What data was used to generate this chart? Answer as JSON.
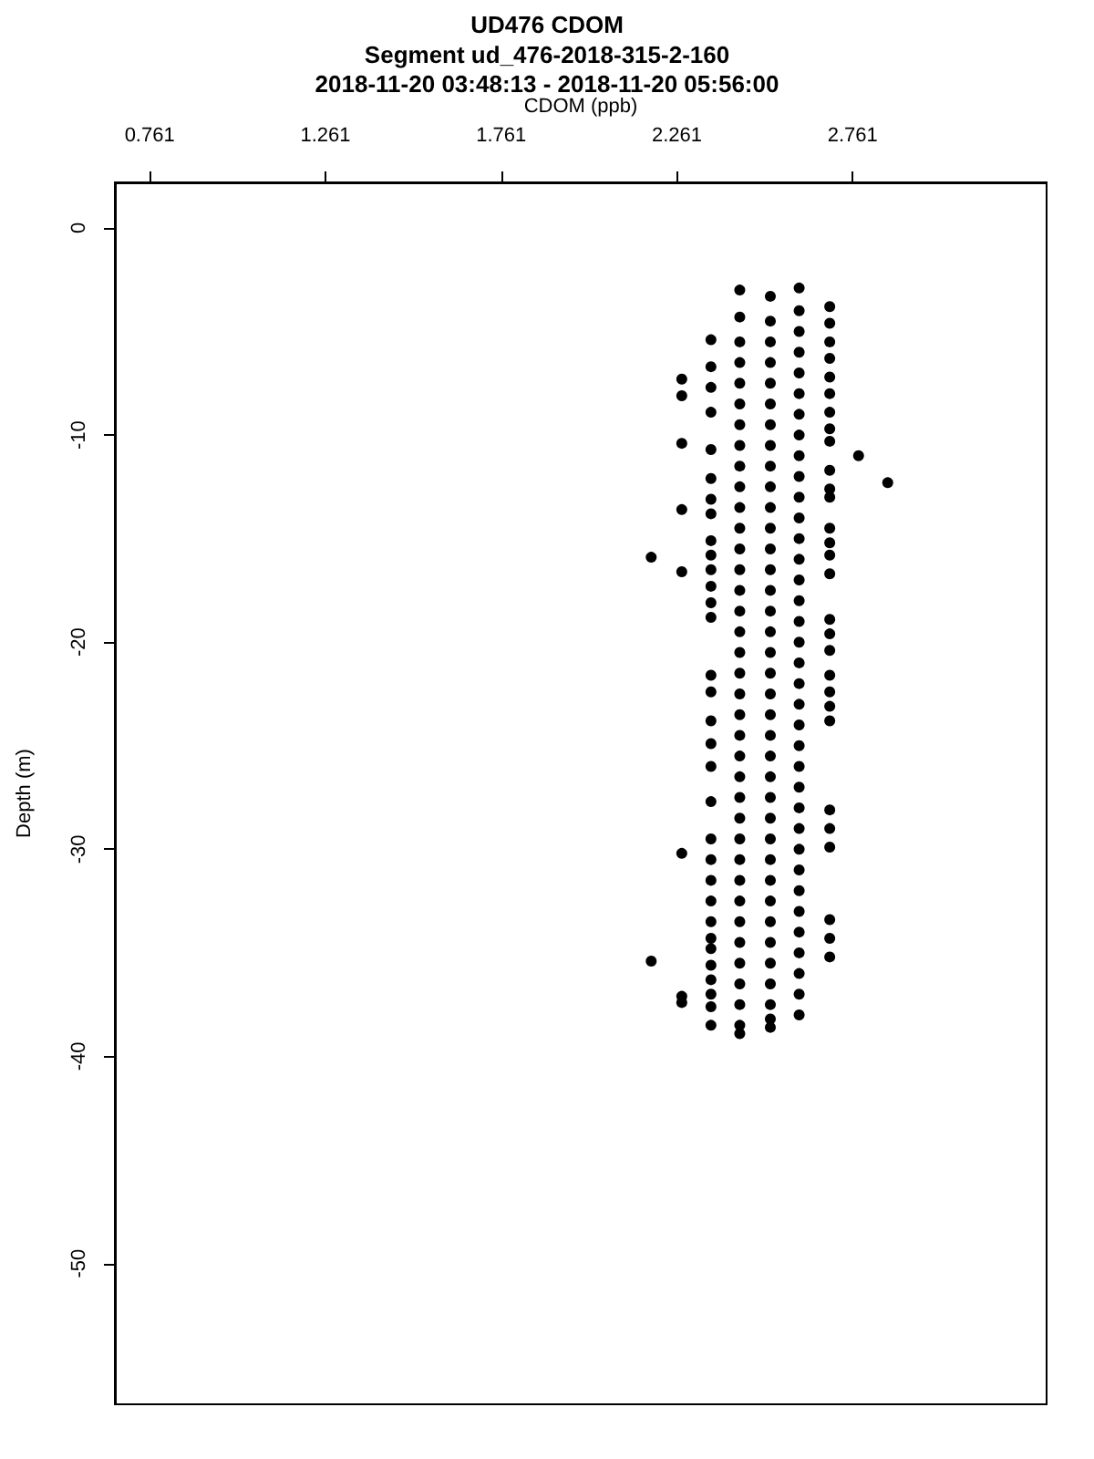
{
  "chart_data": {
    "type": "scatter",
    "title": "UD476 CDOM",
    "subtitle": "Segment ud_476-2018-315-2-160\n2018-11-20 03:48:13 - 2018-11-20 05:56:00",
    "xlabel": "CDOM (ppb)",
    "ylabel": "Depth (m)",
    "xlim": [
      0.662,
      3.313
    ],
    "xticks": [
      0.761,
      1.261,
      1.761,
      2.261,
      2.761
    ],
    "ylim": [
      -56.8,
      2.2
    ],
    "yticks": [
      0,
      -10,
      -20,
      -30,
      -40,
      -50
    ],
    "grid": false,
    "marker": "circle",
    "series": [
      {
        "color": "#000000",
        "x": [
          2.44,
          2.44,
          2.44,
          2.44,
          2.44,
          2.44,
          2.44,
          2.44,
          2.44,
          2.44,
          2.44,
          2.44,
          2.44,
          2.44,
          2.44,
          2.44,
          2.44,
          2.44,
          2.44,
          2.44,
          2.44,
          2.44,
          2.44,
          2.44,
          2.44,
          2.44,
          2.44,
          2.44,
          2.44,
          2.44,
          2.44,
          2.44,
          2.44,
          2.44,
          2.44,
          2.44,
          2.44
        ],
        "values": [
          -3.0,
          -4.3,
          -5.5,
          -6.5,
          -7.5,
          -8.5,
          -9.5,
          -10.5,
          -11.5,
          -12.5,
          -13.5,
          -14.5,
          -15.5,
          -16.5,
          -17.5,
          -18.5,
          -19.5,
          -20.5,
          -21.5,
          -22.5,
          -23.5,
          -24.5,
          -25.5,
          -26.5,
          -27.5,
          -28.5,
          -29.5,
          -30.5,
          -31.5,
          -32.5,
          -33.5,
          -34.5,
          -35.5,
          -36.5,
          -37.5,
          -38.5,
          -38.9
        ]
      },
      {
        "color": "#000000",
        "x": [
          2.527,
          2.527,
          2.527,
          2.527,
          2.527,
          2.527,
          2.527,
          2.527,
          2.527,
          2.527,
          2.527,
          2.527,
          2.527,
          2.527,
          2.527,
          2.527,
          2.527,
          2.527,
          2.527,
          2.527,
          2.527,
          2.527,
          2.527,
          2.527,
          2.527,
          2.527,
          2.527,
          2.527,
          2.527,
          2.527,
          2.527,
          2.527,
          2.527,
          2.527,
          2.527,
          2.527,
          2.527
        ],
        "values": [
          -3.3,
          -4.5,
          -5.5,
          -6.5,
          -7.5,
          -8.5,
          -9.5,
          -10.5,
          -11.5,
          -12.5,
          -13.5,
          -14.5,
          -15.5,
          -16.5,
          -17.5,
          -18.5,
          -19.5,
          -20.5,
          -21.5,
          -22.5,
          -23.5,
          -24.5,
          -25.5,
          -26.5,
          -27.5,
          -28.5,
          -29.5,
          -30.5,
          -31.5,
          -32.5,
          -33.5,
          -34.5,
          -35.5,
          -36.5,
          -37.5,
          -38.2,
          -38.6
        ]
      },
      {
        "color": "#000000",
        "x": [
          2.609,
          2.609,
          2.609,
          2.609,
          2.609,
          2.609,
          2.609,
          2.609,
          2.609,
          2.609,
          2.609,
          2.609,
          2.609,
          2.609,
          2.609,
          2.609,
          2.609,
          2.609,
          2.609,
          2.609,
          2.609,
          2.609,
          2.609,
          2.609,
          2.609,
          2.609,
          2.609,
          2.609,
          2.609,
          2.609,
          2.609,
          2.609,
          2.609,
          2.609,
          2.609,
          2.609
        ],
        "values": [
          -2.9,
          -4,
          -5,
          -6,
          -7,
          -8,
          -9,
          -10,
          -11,
          -12,
          -13,
          -14,
          -15,
          -16,
          -17,
          -18,
          -19,
          -20,
          -21,
          -22,
          -23,
          -24,
          -25,
          -26,
          -27,
          -28,
          -29,
          -30,
          -31,
          -32,
          -33,
          -34,
          -35,
          -36,
          -37,
          -38
        ]
      },
      {
        "color": "#000000",
        "x": [
          2.358,
          2.358,
          2.358,
          2.358,
          2.358,
          2.358,
          2.358,
          2.358,
          2.358,
          2.358,
          2.358,
          2.358,
          2.358,
          2.358,
          2.358,
          2.358,
          2.358,
          2.358,
          2.358,
          2.358,
          2.358,
          2.358,
          2.358,
          2.358,
          2.358,
          2.358,
          2.358,
          2.358,
          2.358,
          2.358,
          2.358,
          2.358
        ],
        "values": [
          -5.4,
          -6.7,
          -7.7,
          -8.9,
          -10.7,
          -12.1,
          -13.1,
          -13.8,
          -15.1,
          -15.8,
          -16.5,
          -17.3,
          -18.1,
          -18.8,
          -21.6,
          -22.4,
          -23.8,
          -24.9,
          -26.0,
          -27.7,
          -29.5,
          -30.5,
          -31.5,
          -32.5,
          -33.5,
          -34.3,
          -34.8,
          -35.6,
          -36.3,
          -37.0,
          -37.6,
          -38.5
        ]
      },
      {
        "color": "#000000",
        "x": [
          2.275,
          2.275,
          2.275,
          2.275,
          2.275,
          2.275,
          2.275,
          2.275,
          2.188,
          2.188,
          2.778,
          2.861
        ],
        "values": [
          -7.3,
          -8.1,
          -10.4,
          -13.6,
          -16.6,
          -30.2,
          -37.1,
          -37.4,
          -15.9,
          -35.4,
          -11.0,
          -12.3
        ]
      },
      {
        "color": "#000000",
        "x": [
          2.696,
          2.696,
          2.696,
          2.696,
          2.696,
          2.696,
          2.696,
          2.696,
          2.696,
          2.696,
          2.696,
          2.696,
          2.696,
          2.696,
          2.696,
          2.696,
          2.696,
          2.696,
          2.696,
          2.696,
          2.696,
          2.696,
          2.696,
          2.696,
          2.696,
          2.696,
          2.696,
          2.696
        ],
        "values": [
          -3.8,
          -4.6,
          -5.5,
          -6.3,
          -7.2,
          -8.0,
          -8.9,
          -9.7,
          -10.3,
          -11.7,
          -12.6,
          -13.0,
          -14.5,
          -15.2,
          -15.8,
          -16.7,
          -18.9,
          -19.6,
          -20.4,
          -21.6,
          -22.4,
          -23.1,
          -23.8,
          -28.1,
          -29.0,
          -29.9,
          -33.4,
          -34.3
        ]
      },
      {
        "color": "#000000",
        "x": [
          2.696
        ],
        "values": [
          -35.2
        ]
      }
    ]
  }
}
